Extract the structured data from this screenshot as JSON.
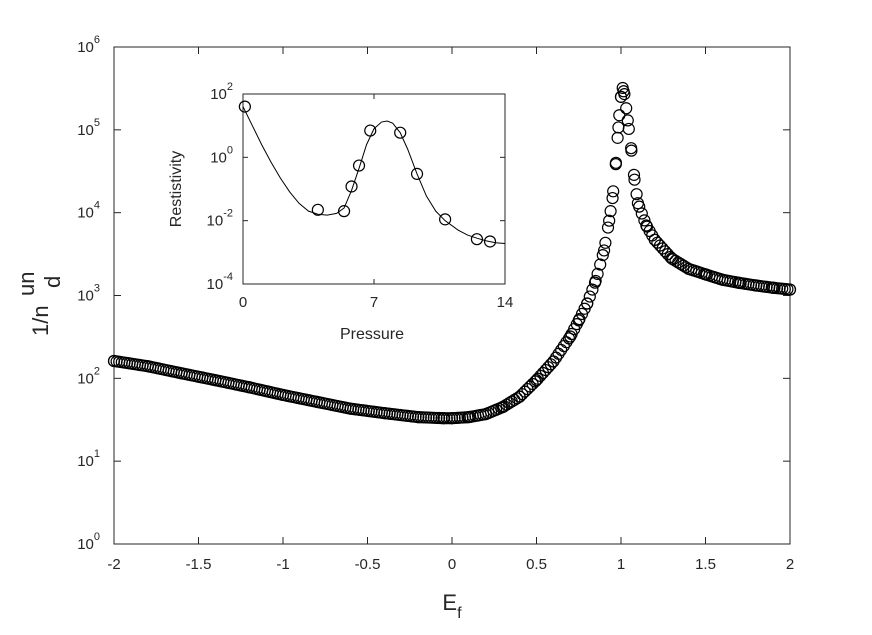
{
  "chart_data": [
    {
      "type": "scatter",
      "title": "",
      "xlabel": {
        "base": "E",
        "subscript": "f"
      },
      "ylabel": {
        "prefix": "1/n",
        "superscript": "un",
        "subscript": "d"
      },
      "xlim": [
        -2,
        2
      ],
      "ylim": [
        1,
        1000000
      ],
      "yscale": "log",
      "grid": false,
      "legend": "none",
      "marker": "open-circle",
      "marker_color": "#000000",
      "x_ticks": [
        {
          "value": -2,
          "label": "-2"
        },
        {
          "value": -1.5,
          "label": "-1.5"
        },
        {
          "value": -1,
          "label": "-1"
        },
        {
          "value": -0.5,
          "label": "-0.5"
        },
        {
          "value": 0,
          "label": "0"
        },
        {
          "value": 0.5,
          "label": "0.5"
        },
        {
          "value": 1,
          "label": "1"
        },
        {
          "value": 1.5,
          "label": "1.5"
        },
        {
          "value": 2,
          "label": "2"
        }
      ],
      "y_ticks": [
        {
          "value": 1,
          "base": "10",
          "exp": "0"
        },
        {
          "value": 10,
          "base": "10",
          "exp": "1"
        },
        {
          "value": 100,
          "base": "10",
          "exp": "2"
        },
        {
          "value": 1000,
          "base": "10",
          "exp": "3"
        },
        {
          "value": 10000,
          "base": "10",
          "exp": "4"
        },
        {
          "value": 100000,
          "base": "10",
          "exp": "5"
        },
        {
          "value": 1000000,
          "base": "10",
          "exp": "6"
        }
      ],
      "series": [
        {
          "points": [
            [
              -2.0,
              162
            ],
            [
              -1.8,
              140
            ],
            [
              -1.6,
              115
            ],
            [
              -1.4,
              95
            ],
            [
              -1.2,
              78
            ],
            [
              -1.0,
              63
            ],
            [
              -0.8,
              52
            ],
            [
              -0.6,
              43
            ],
            [
              -0.4,
              38
            ],
            [
              -0.2,
              34
            ],
            [
              -0.05,
              33
            ],
            [
              0.0,
              33
            ],
            [
              0.1,
              34
            ],
            [
              0.2,
              37
            ],
            [
              0.3,
              45
            ],
            [
              0.4,
              60
            ],
            [
              0.5,
              95
            ],
            [
              0.6,
              160
            ],
            [
              0.7,
              320
            ],
            [
              0.75,
              500
            ],
            [
              0.8,
              800
            ],
            [
              0.85,
              1500
            ],
            [
              0.9,
              3500
            ],
            [
              0.93,
              8000
            ],
            [
              0.95,
              15000
            ],
            [
              0.97,
              40000
            ],
            [
              0.98,
              80000
            ],
            [
              0.99,
              150000
            ],
            [
              1.0,
              250000
            ],
            [
              1.01,
              320000
            ],
            [
              1.02,
              270000
            ],
            [
              1.04,
              130000
            ],
            [
              1.06,
              60000
            ],
            [
              1.08,
              25000
            ],
            [
              1.1,
              13000
            ],
            [
              1.15,
              7000
            ],
            [
              1.2,
              4700
            ],
            [
              1.3,
              2800
            ],
            [
              1.4,
              2100
            ],
            [
              1.5,
              1800
            ],
            [
              1.6,
              1550
            ],
            [
              1.7,
              1420
            ],
            [
              1.8,
              1320
            ],
            [
              1.9,
              1240
            ],
            [
              2.0,
              1180
            ]
          ]
        }
      ]
    },
    {
      "type": "line",
      "title": "",
      "xlabel": "Pressure",
      "ylabel": "Restistivity",
      "xlim": [
        0,
        14
      ],
      "ylim": [
        0.0001,
        100
      ],
      "yscale": "log",
      "grid": false,
      "legend": "none",
      "x_ticks": [
        {
          "value": 0,
          "label": "0"
        },
        {
          "value": 7,
          "label": "7"
        },
        {
          "value": 14,
          "label": "14"
        }
      ],
      "y_ticks": [
        {
          "value": 0.0001,
          "base": "10",
          "exp": "-4"
        },
        {
          "value": 0.01,
          "base": "10",
          "exp": "-2"
        },
        {
          "value": 1,
          "base": "10",
          "exp": "0"
        },
        {
          "value": 100,
          "base": "10",
          "exp": "2"
        }
      ],
      "series": [
        {
          "style": "circles",
          "points": [
            [
              0.1,
              40
            ],
            [
              4.0,
              0.022
            ],
            [
              5.4,
              0.02
            ],
            [
              5.8,
              0.12
            ],
            [
              6.2,
              0.55
            ],
            [
              6.8,
              7.0
            ],
            [
              8.4,
              6.0
            ],
            [
              9.3,
              0.3
            ],
            [
              10.8,
              0.011
            ],
            [
              12.5,
              0.0026
            ],
            [
              13.2,
              0.0022
            ]
          ]
        },
        {
          "style": "line",
          "points": [
            [
              0.0,
              40
            ],
            [
              0.5,
              10
            ],
            [
              1.0,
              2.5
            ],
            [
              1.5,
              0.7
            ],
            [
              2.0,
              0.22
            ],
            [
              2.5,
              0.08
            ],
            [
              3.0,
              0.035
            ],
            [
              3.5,
              0.02
            ],
            [
              4.0,
              0.016
            ],
            [
              4.5,
              0.015
            ],
            [
              5.0,
              0.017
            ],
            [
              5.4,
              0.025
            ],
            [
              5.8,
              0.09
            ],
            [
              6.2,
              0.45
            ],
            [
              6.6,
              2.5
            ],
            [
              7.0,
              8.0
            ],
            [
              7.4,
              13
            ],
            [
              7.7,
              14
            ],
            [
              8.0,
              12
            ],
            [
              8.4,
              6.0
            ],
            [
              8.8,
              1.8
            ],
            [
              9.3,
              0.3
            ],
            [
              9.8,
              0.06
            ],
            [
              10.3,
              0.02
            ],
            [
              10.8,
              0.01
            ],
            [
              11.5,
              0.005
            ],
            [
              12.0,
              0.0035
            ],
            [
              12.5,
              0.0028
            ],
            [
              13.0,
              0.0023
            ],
            [
              13.5,
              0.002
            ],
            [
              14.0,
              0.0019
            ]
          ]
        }
      ]
    }
  ]
}
